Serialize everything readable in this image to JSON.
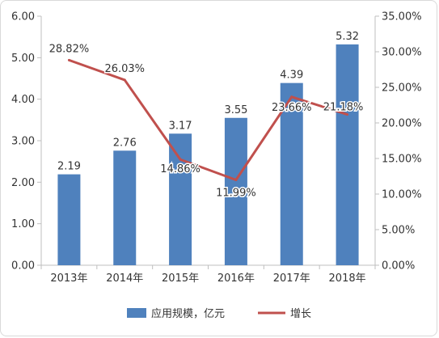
{
  "chart_data": {
    "type": "bar",
    "categories": [
      "2013年",
      "2014年",
      "2015年",
      "2016年",
      "2017年",
      "2018年"
    ],
    "series": [
      {
        "name": "应用规模，亿元",
        "type": "bar",
        "axis": "left",
        "values": [
          2.19,
          2.76,
          3.17,
          3.55,
          4.39,
          5.32
        ],
        "labels": [
          "2.19",
          "2.76",
          "3.17",
          "3.55",
          "4.39",
          "5.32"
        ],
        "color": "#4f81bd"
      },
      {
        "name": "增长",
        "type": "line",
        "axis": "right",
        "values": [
          28.82,
          26.03,
          14.86,
          11.99,
          23.66,
          21.18
        ],
        "labels": [
          "28.82%",
          "26.03%",
          "14.86%",
          "11.99%",
          "23.66%",
          "21.18%"
        ],
        "color": "#c0504d"
      }
    ],
    "left_axis": {
      "ylim": [
        0,
        6
      ],
      "ticks": [
        "0.00",
        "1.00",
        "2.00",
        "3.00",
        "4.00",
        "5.00",
        "6.00"
      ]
    },
    "right_axis": {
      "ylim": [
        0,
        35
      ],
      "ticks": [
        "0.00%",
        "5.00%",
        "10.00%",
        "15.00%",
        "20.00%",
        "25.00%",
        "30.00%",
        "35.00%"
      ]
    },
    "grid": false,
    "legend": "bottom"
  }
}
